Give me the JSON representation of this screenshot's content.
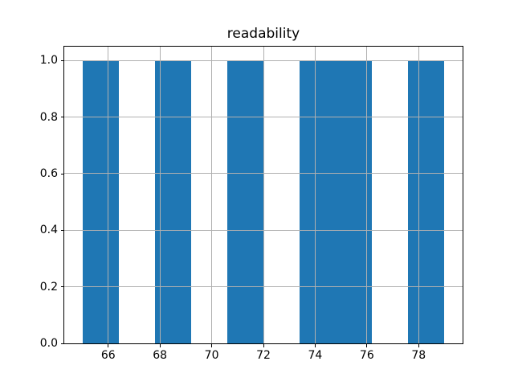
{
  "chart_data": {
    "type": "bar",
    "subtype": "histogram",
    "title": "readability",
    "xlabel": "",
    "ylabel": "",
    "bin_edges": [
      65.0,
      66.4,
      67.8,
      69.2,
      70.6,
      72.0,
      73.4,
      74.8,
      76.2,
      77.6,
      79.0
    ],
    "counts": [
      1,
      0,
      1,
      0,
      1,
      0,
      1,
      1,
      0,
      1
    ],
    "xlim": [
      64.3,
      79.7
    ],
    "ylim": [
      0,
      1.05
    ],
    "xticks": [
      {
        "value": 66,
        "label": "66"
      },
      {
        "value": 68,
        "label": "68"
      },
      {
        "value": 70,
        "label": "70"
      },
      {
        "value": 72,
        "label": "72"
      },
      {
        "value": 74,
        "label": "74"
      },
      {
        "value": 76,
        "label": "76"
      },
      {
        "value": 78,
        "label": "78"
      }
    ],
    "yticks": [
      {
        "value": 0.0,
        "label": "0.0"
      },
      {
        "value": 0.2,
        "label": "0.2"
      },
      {
        "value": 0.4,
        "label": "0.4"
      },
      {
        "value": 0.6,
        "label": "0.6"
      },
      {
        "value": 0.8,
        "label": "0.8"
      },
      {
        "value": 1.0,
        "label": "1.0"
      }
    ],
    "grid": true,
    "grid_above_bars": true,
    "legend_position": "none",
    "colors": {
      "bar": "#1f77b4",
      "grid": "#b0b0b0",
      "axis": "#000000",
      "text": "#000000",
      "background": "#ffffff"
    }
  }
}
